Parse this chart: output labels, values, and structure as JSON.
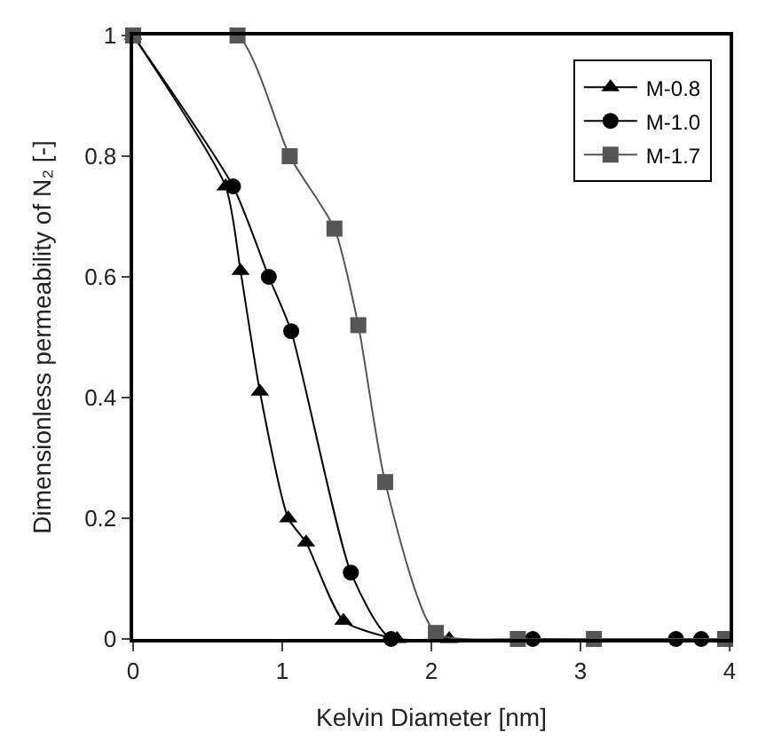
{
  "chart_data": {
    "type": "line",
    "xlabel": "Kelvin Diameter [nm]",
    "ylabel": "Dimensionless permeability of N₂ [-]",
    "xlim": [
      0,
      4
    ],
    "xticks": [
      0,
      1,
      2,
      3,
      4
    ],
    "ylim": [
      0,
      1
    ],
    "yticks": [
      0,
      0.2,
      0.4,
      0.6,
      0.8,
      1
    ],
    "legend": "top right",
    "series": [
      {
        "name": "M-0.8",
        "color": "#000000",
        "marker": "triangle",
        "x": [
          0,
          0.62,
          0.72,
          0.85,
          1.04,
          1.16,
          1.41,
          1.77,
          2.12
        ],
        "values": [
          1,
          0.75,
          0.61,
          0.41,
          0.2,
          0.16,
          0.03,
          0,
          0
        ]
      },
      {
        "name": "M-1.0",
        "color": "#000000",
        "marker": "circle",
        "x": [
          0,
          0.67,
          0.91,
          1.06,
          1.46,
          1.73,
          2.68,
          3.64,
          3.81
        ],
        "values": [
          1,
          0.75,
          0.6,
          0.51,
          0.11,
          0,
          0,
          0,
          0
        ]
      },
      {
        "name": "M-1.7",
        "color": "#555555",
        "marker": "square",
        "x": [
          0,
          0.7,
          1.05,
          1.35,
          1.51,
          1.69,
          2.03,
          2.58,
          3.09,
          3.97
        ],
        "values": [
          1,
          1,
          0.8,
          0.68,
          0.52,
          0.26,
          0.01,
          0,
          0,
          0
        ]
      }
    ]
  }
}
